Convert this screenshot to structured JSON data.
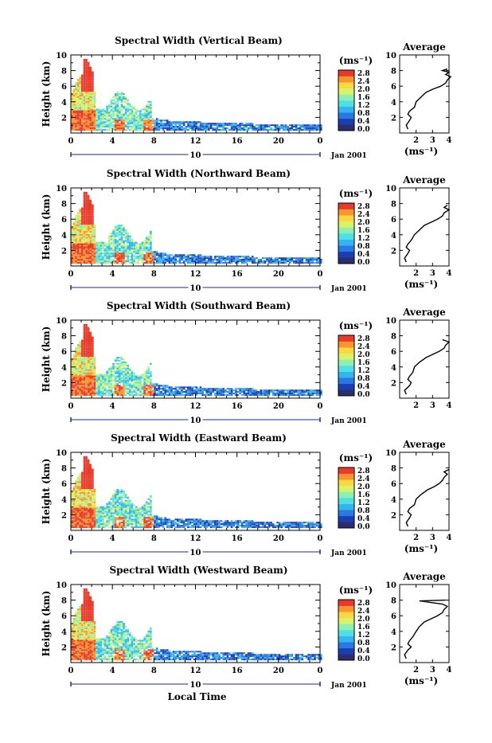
{
  "figure": {
    "xlabel": "Local Time",
    "date_label": "Jan 2001",
    "day_label": "10"
  },
  "colorbar": {
    "unit": "(ms⁻¹)",
    "ticks": [
      "2.8",
      "2.4",
      "2.0",
      "1.6",
      "1.2",
      "0.8",
      "0.4",
      "0.0"
    ],
    "colors": [
      "#2b2d6e",
      "#1c3fb0",
      "#2a78e4",
      "#34b5ee",
      "#4fe0e6",
      "#8ef0b0",
      "#d9f26a",
      "#fbd744",
      "#f7952f",
      "#e83a2a"
    ]
  },
  "chart_data": [
    {
      "type": "heatmap",
      "title": "Spectral Width (Vertical Beam)",
      "ylabel": "Height (km)",
      "xlim": [
        0,
        24
      ],
      "ylim": [
        0,
        10
      ],
      "x_ticks": [
        "0",
        "4",
        "8",
        "12",
        "16",
        "20",
        "0"
      ],
      "y_ticks": [
        "2",
        "4",
        "6",
        "8",
        "10"
      ],
      "avg_title": "Average",
      "avg_xlabel": "(ms⁻¹)",
      "avg_xlim": [
        1,
        4
      ],
      "avg_x_ticks": [
        "2",
        "3",
        "4"
      ],
      "avg_ylim": [
        0,
        10
      ],
      "avg_y_ticks": [
        "2",
        "4",
        "6",
        "8",
        "10"
      ],
      "avg_profile": [
        [
          1.5,
          0.5
        ],
        [
          1.4,
          1.0
        ],
        [
          1.6,
          1.6
        ],
        [
          1.7,
          2.0
        ],
        [
          1.5,
          2.4
        ],
        [
          1.6,
          2.8
        ],
        [
          1.9,
          3.3
        ],
        [
          2.0,
          4.0
        ],
        [
          2.3,
          4.6
        ],
        [
          2.6,
          5.2
        ],
        [
          3.0,
          5.6
        ],
        [
          3.5,
          6.0
        ],
        [
          3.8,
          6.4
        ],
        [
          3.9,
          6.8
        ],
        [
          4.1,
          7.2
        ],
        [
          3.8,
          7.5
        ],
        [
          4.0,
          7.8
        ],
        [
          3.6,
          8.0
        ],
        [
          3.9,
          8.2
        ]
      ]
    },
    {
      "type": "heatmap",
      "title": "Spectral Width (Northward Beam)",
      "ylabel": "Height (km)",
      "xlim": [
        0,
        24
      ],
      "ylim": [
        0,
        10
      ],
      "x_ticks": [
        "0",
        "4",
        "8",
        "12",
        "16",
        "20",
        "0"
      ],
      "y_ticks": [
        "2",
        "4",
        "6",
        "8",
        "10"
      ],
      "avg_title": "Average",
      "avg_xlabel": "(ms⁻¹)",
      "avg_xlim": [
        1,
        4
      ],
      "avg_x_ticks": [
        "2",
        "3",
        "4"
      ],
      "avg_ylim": [
        0,
        10
      ],
      "avg_y_ticks": [
        "2",
        "4",
        "6",
        "8",
        "10"
      ],
      "avg_profile": [
        [
          1.4,
          0.5
        ],
        [
          1.3,
          1.0
        ],
        [
          1.5,
          1.6
        ],
        [
          1.6,
          2.0
        ],
        [
          1.4,
          2.4
        ],
        [
          1.5,
          2.8
        ],
        [
          1.7,
          3.3
        ],
        [
          1.9,
          4.0
        ],
        [
          2.2,
          4.6
        ],
        [
          2.5,
          5.2
        ],
        [
          2.9,
          5.6
        ],
        [
          3.3,
          6.0
        ],
        [
          3.6,
          6.4
        ],
        [
          3.7,
          6.8
        ],
        [
          4.0,
          7.2
        ],
        [
          3.7,
          7.5
        ],
        [
          3.9,
          7.8
        ]
      ]
    },
    {
      "type": "heatmap",
      "title": "Spectral Width (Southward Beam)",
      "ylabel": "Height (km)",
      "xlim": [
        0,
        24
      ],
      "ylim": [
        0,
        10
      ],
      "x_ticks": [
        "0",
        "4",
        "8",
        "12",
        "16",
        "20",
        "0"
      ],
      "y_ticks": [
        "2",
        "4",
        "6",
        "8",
        "10"
      ],
      "avg_title": "Average",
      "avg_xlabel": "",
      "avg_xlim": [
        1,
        4
      ],
      "avg_x_ticks": [
        "2",
        "3",
        "4"
      ],
      "avg_ylim": [
        0,
        10
      ],
      "avg_y_ticks": [
        "2",
        "4",
        "6",
        "8",
        "10"
      ],
      "avg_profile": [
        [
          1.4,
          0.5
        ],
        [
          1.3,
          1.0
        ],
        [
          1.6,
          1.6
        ],
        [
          1.7,
          2.0
        ],
        [
          1.5,
          2.4
        ],
        [
          1.6,
          2.8
        ],
        [
          1.8,
          3.3
        ],
        [
          1.9,
          4.0
        ],
        [
          2.2,
          4.6
        ],
        [
          2.6,
          5.2
        ],
        [
          3.0,
          5.6
        ],
        [
          3.4,
          6.0
        ],
        [
          3.7,
          6.4
        ],
        [
          3.8,
          6.8
        ],
        [
          4.0,
          7.2
        ],
        [
          3.6,
          7.5
        ]
      ]
    },
    {
      "type": "heatmap",
      "title": "Spectral Width (Eastward Beam)",
      "ylabel": "Height (km)",
      "xlim": [
        0,
        24
      ],
      "ylim": [
        0,
        10
      ],
      "x_ticks": [
        "0",
        "4",
        "8",
        "12",
        "16",
        "20",
        "0"
      ],
      "y_ticks": [
        "2",
        "4",
        "6",
        "8",
        "10"
      ],
      "avg_title": "Average",
      "avg_xlabel": "(ms⁻¹)",
      "avg_xlim": [
        1,
        4
      ],
      "avg_x_ticks": [
        "2",
        "3",
        "4"
      ],
      "avg_ylim": [
        0,
        10
      ],
      "avg_y_ticks": [
        "2",
        "4",
        "6",
        "8",
        "10"
      ],
      "avg_profile": [
        [
          1.5,
          0.5
        ],
        [
          1.4,
          1.0
        ],
        [
          1.6,
          1.6
        ],
        [
          1.7,
          2.0
        ],
        [
          1.5,
          2.4
        ],
        [
          1.6,
          2.8
        ],
        [
          1.9,
          3.3
        ],
        [
          2.0,
          4.0
        ],
        [
          2.3,
          4.6
        ],
        [
          2.7,
          5.2
        ],
        [
          3.1,
          5.6
        ],
        [
          3.4,
          6.0
        ],
        [
          3.6,
          6.4
        ],
        [
          3.7,
          6.8
        ],
        [
          3.9,
          7.2
        ],
        [
          3.7,
          7.5
        ],
        [
          4.0,
          7.8
        ]
      ]
    },
    {
      "type": "heatmap",
      "title": "Spectral Width (Westward Beam)",
      "ylabel": "Height (km)",
      "xlim": [
        0,
        24
      ],
      "ylim": [
        0,
        10
      ],
      "x_ticks": [
        "0",
        "4",
        "8",
        "12",
        "16",
        "20",
        "0"
      ],
      "y_ticks": [
        "2",
        "4",
        "6",
        "8",
        "10"
      ],
      "avg_title": "Average",
      "avg_xlabel": "(ms⁻¹)",
      "avg_xlim": [
        1,
        4
      ],
      "avg_x_ticks": [
        "2",
        "3",
        "4"
      ],
      "avg_ylim": [
        0,
        10
      ],
      "avg_y_ticks": [
        "2",
        "4",
        "6",
        "8",
        "10"
      ],
      "avg_profile": [
        [
          1.4,
          0.5
        ],
        [
          1.3,
          1.0
        ],
        [
          1.5,
          1.6
        ],
        [
          1.7,
          2.0
        ],
        [
          1.5,
          2.4
        ],
        [
          1.6,
          2.8
        ],
        [
          1.8,
          3.3
        ],
        [
          2.0,
          4.0
        ],
        [
          2.2,
          4.6
        ],
        [
          2.5,
          5.2
        ],
        [
          2.9,
          5.6
        ],
        [
          3.3,
          6.0
        ],
        [
          3.6,
          6.4
        ],
        [
          3.7,
          6.8
        ],
        [
          3.9,
          7.2
        ],
        [
          3.6,
          7.5
        ],
        [
          2.2,
          7.9
        ],
        [
          3.8,
          8.0
        ]
      ]
    }
  ]
}
